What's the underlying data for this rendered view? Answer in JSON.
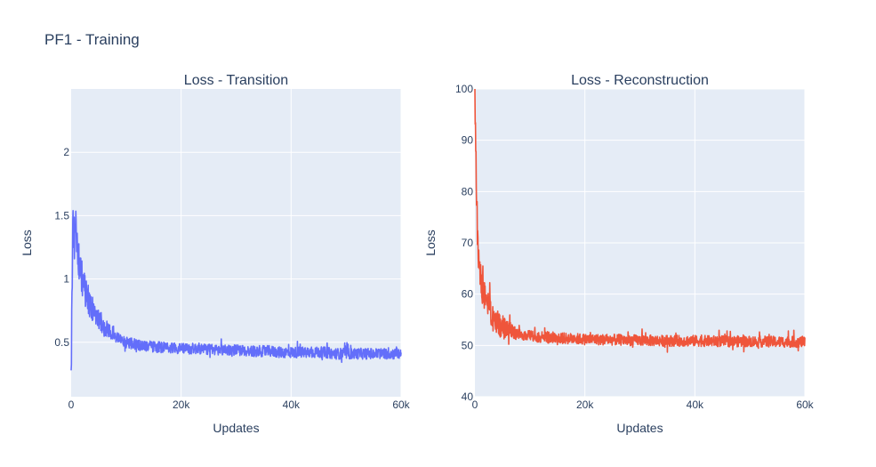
{
  "figure": {
    "title": "PF1 - Training"
  },
  "chart_data": [
    {
      "type": "line",
      "title": "Loss - Transition",
      "xlabel": "Updates",
      "ylabel": "Loss",
      "color": "#636efa",
      "background": "#e5ecf6",
      "xlim": [
        0,
        60000
      ],
      "ylim": [
        0.07,
        2.5
      ],
      "x_ticks": [
        0,
        20000,
        40000,
        60000
      ],
      "x_tick_labels": [
        "0",
        "20k",
        "40k",
        "60k"
      ],
      "y_ticks": [
        0.5,
        1,
        1.5,
        2
      ],
      "y_tick_labels": [
        "0.5",
        "1",
        "1.5",
        "2"
      ],
      "grid": true,
      "series": [
        {
          "x": [
            0,
            300,
            600,
            900,
            1200,
            1500,
            2000,
            2500,
            3000,
            3500,
            4000,
            5000,
            6000,
            7000,
            8000,
            9000,
            10000,
            12000,
            14000,
            16000,
            18000,
            20000,
            22000,
            24000,
            26000,
            28000,
            30000,
            32000,
            34000,
            36000,
            38000,
            40000,
            42000,
            44000,
            46000,
            48000,
            50000,
            52000,
            54000,
            56000,
            58000,
            60000
          ],
          "y": [
            0.2,
            1.5,
            1.3,
            1.4,
            1.25,
            1.1,
            1.0,
            0.92,
            0.85,
            0.8,
            0.75,
            0.68,
            0.62,
            0.58,
            0.55,
            0.52,
            0.5,
            0.48,
            0.47,
            0.46,
            0.46,
            0.45,
            0.45,
            0.45,
            0.44,
            0.44,
            0.44,
            0.43,
            0.43,
            0.43,
            0.42,
            0.42,
            0.42,
            0.42,
            0.42,
            0.41,
            0.41,
            0.41,
            0.41,
            0.41,
            0.41,
            0.41
          ]
        }
      ]
    },
    {
      "type": "line",
      "title": "Loss - Reconstruction",
      "xlabel": "Updates",
      "ylabel": "Loss",
      "color": "#ef553b",
      "background": "#e5ecf6",
      "xlim": [
        0,
        60000
      ],
      "ylim": [
        40,
        100
      ],
      "x_ticks": [
        0,
        20000,
        40000,
        60000
      ],
      "x_tick_labels": [
        "0",
        "20k",
        "40k",
        "60k"
      ],
      "y_ticks": [
        40,
        50,
        60,
        70,
        80,
        90,
        100
      ],
      "y_tick_labels": [
        "40",
        "50",
        "60",
        "70",
        "80",
        "90",
        "100"
      ],
      "grid": true,
      "series": [
        {
          "x": [
            0,
            100,
            200,
            300,
            500,
            700,
            1000,
            1500,
            2000,
            2500,
            3000,
            3500,
            4000,
            5000,
            6000,
            7000,
            8000,
            9000,
            10000,
            12000,
            14000,
            16000,
            18000,
            20000,
            25000,
            30000,
            35000,
            40000,
            45000,
            50000,
            55000,
            60000
          ],
          "y": [
            100,
            92,
            85,
            78,
            72,
            67,
            63,
            60,
            58,
            57,
            56,
            55,
            54.5,
            53.5,
            53,
            52.5,
            52.2,
            52,
            51.8,
            51.6,
            51.5,
            51.4,
            51.3,
            51.2,
            51.1,
            51,
            50.9,
            50.9,
            50.8,
            50.8,
            50.7,
            50.7
          ]
        }
      ]
    }
  ]
}
